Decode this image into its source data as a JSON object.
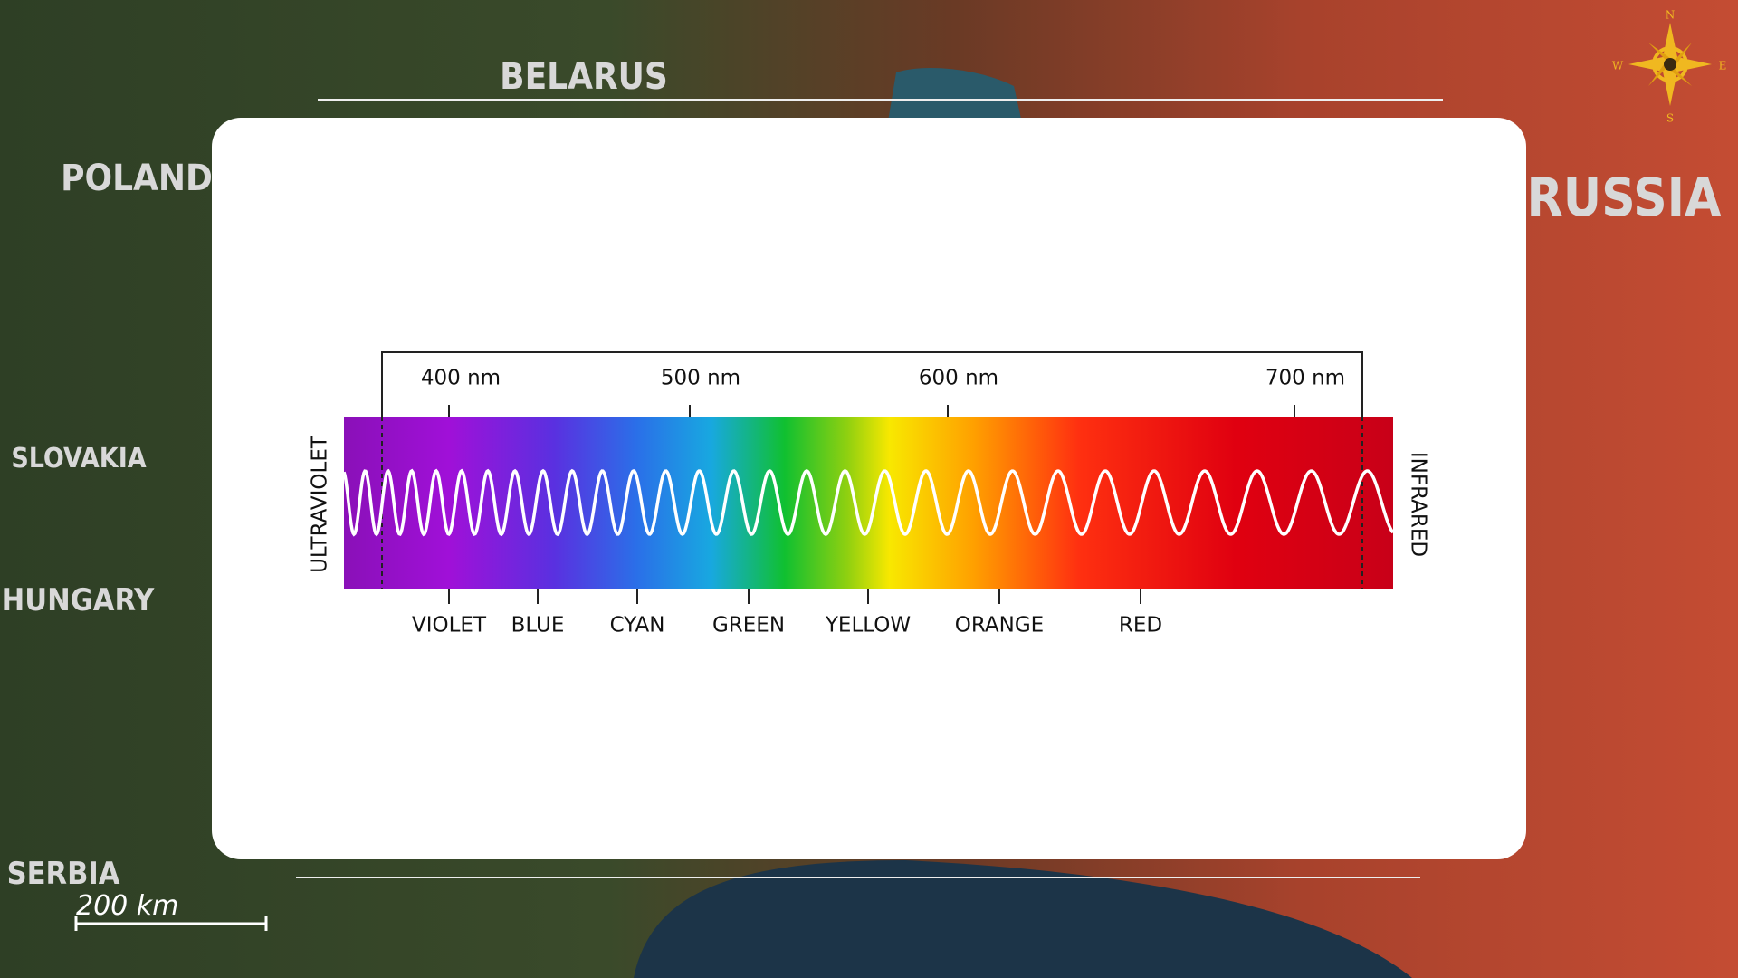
{
  "map": {
    "labels": [
      "BELARUS",
      "POLAND",
      "RUSSIA",
      "SLOVAKIA",
      "HUNGARY",
      "SERBIA"
    ],
    "scale": "200 km",
    "compass": [
      "N",
      "W",
      "E",
      "S"
    ]
  },
  "diagram": {
    "wavelengths": [
      "400 nm",
      "500 nm",
      "600 nm",
      "700 nm"
    ],
    "left_label": "ULTRAVIOLET",
    "right_label": "INFRARED",
    "colors": [
      "VIOLET",
      "BLUE",
      "CYAN",
      "GREEN",
      "YELLOW",
      "ORANGE",
      "RED"
    ]
  }
}
